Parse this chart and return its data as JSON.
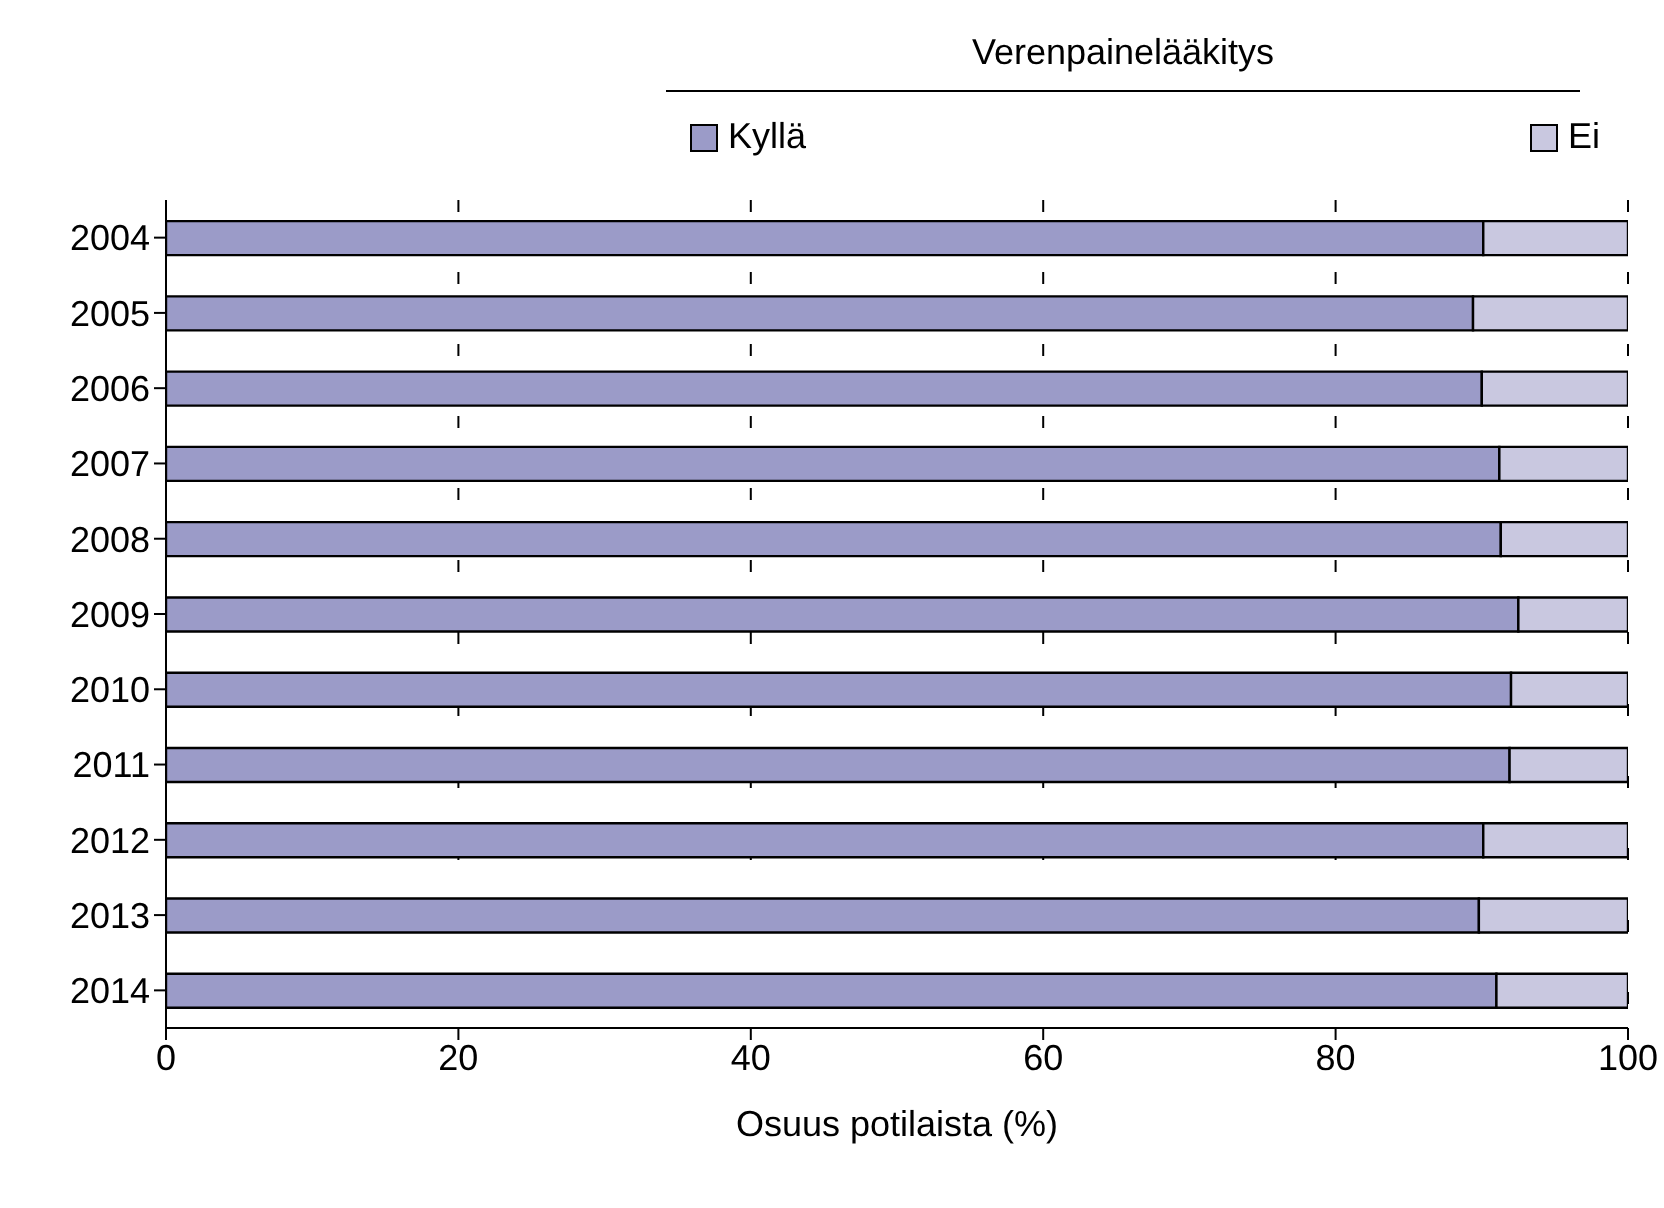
{
  "chart_data": {
    "type": "bar",
    "orientation": "horizontal",
    "stacked": true,
    "legend_title": "Verenpainelääkitys",
    "xlabel": "Osuus potilaista (%)",
    "categories": [
      "2004",
      "2005",
      "2006",
      "2007",
      "2008",
      "2009",
      "2010",
      "2011",
      "2012",
      "2013",
      "2014"
    ],
    "series": [
      {
        "name": "Kyllä",
        "color": "#9b9bc8",
        "values": [
          90.1,
          89.4,
          90.0,
          91.2,
          91.3,
          92.5,
          92.0,
          91.9,
          90.1,
          89.8,
          91.0
        ]
      },
      {
        "name": "Ei",
        "color": "#c9c8e0",
        "values": [
          9.9,
          10.6,
          10.0,
          8.8,
          8.7,
          7.5,
          8.0,
          8.1,
          9.9,
          10.2,
          9.0
        ]
      }
    ],
    "xlim": [
      0,
      100
    ],
    "xticks": [
      0,
      20,
      40,
      60,
      80,
      100
    ],
    "grid": "x",
    "legend": "top"
  }
}
